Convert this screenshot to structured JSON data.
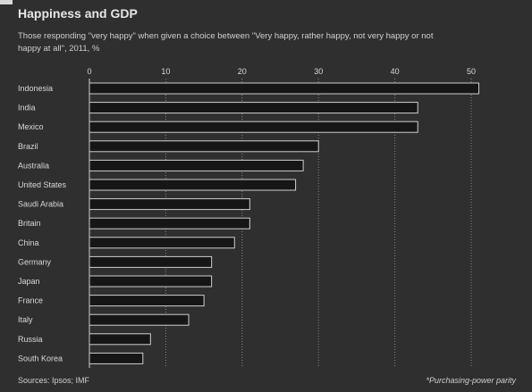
{
  "header": {
    "title": "Happiness and GDP",
    "subtitle": "Those responding \"very happy\" when given a choice between \"Very happy, rather happy, not very happy or not happy at all\", 2011, %"
  },
  "footer": {
    "source": "Sources: Ipsos; IMF",
    "footnote": "*Purchasing-power parity"
  },
  "colors": {
    "background": "#2f2f2f",
    "bar": "#161616",
    "bar_border": "#cfcfcf",
    "text": "#d8d8d8",
    "grid": "#8a8a8a"
  },
  "chart_data": {
    "type": "bar",
    "orientation": "horizontal",
    "categories": [
      "Indonesia",
      "India",
      "Mexico",
      "Brazil",
      "Australia",
      "United States",
      "Saudi Arabia",
      "Britain",
      "China",
      "Germany",
      "Japan",
      "France",
      "Italy",
      "Russia",
      "South Korea"
    ],
    "values": [
      51,
      43,
      43,
      30,
      28,
      27,
      21,
      21,
      19,
      16,
      16,
      15,
      13,
      8,
      7
    ],
    "xlim": [
      0,
      50
    ],
    "xticks": [
      0,
      10,
      20,
      30,
      40,
      50
    ],
    "grid": true,
    "xlabel": "",
    "ylabel": ""
  }
}
